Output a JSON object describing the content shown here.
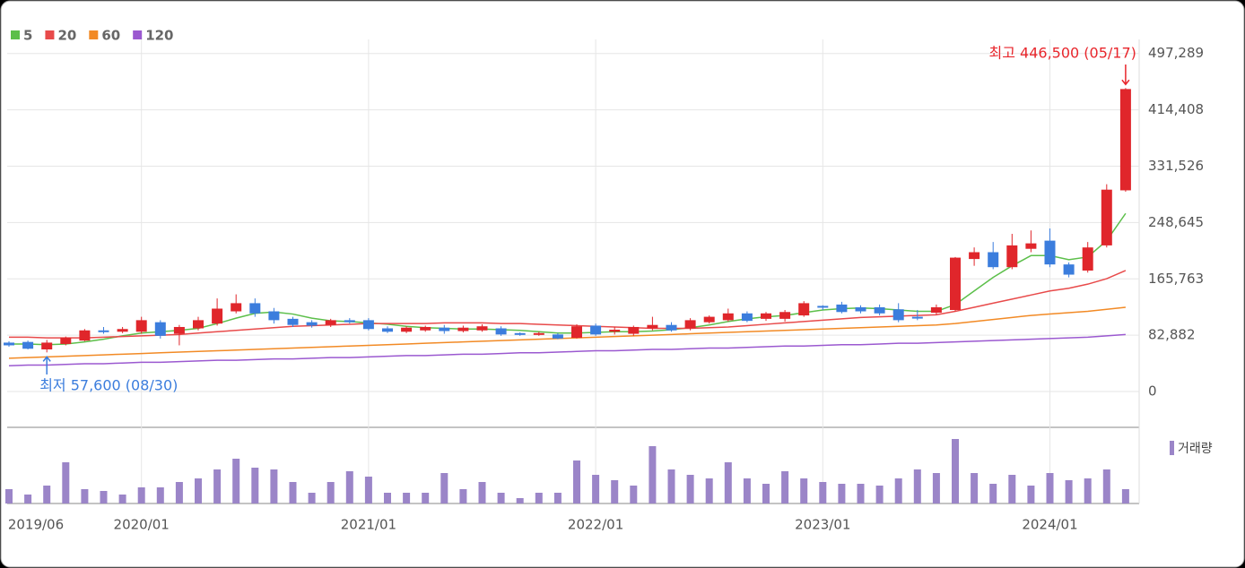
{
  "chart_data": {
    "type": "candlestick",
    "categories": [
      "2019/06",
      null,
      null,
      null,
      null,
      null,
      null,
      "2020/01",
      null,
      null,
      null,
      null,
      null,
      null,
      null,
      null,
      null,
      null,
      null,
      "2021/01",
      null,
      null,
      null,
      null,
      null,
      null,
      null,
      null,
      null,
      null,
      null,
      "2022/01",
      null,
      null,
      null,
      null,
      null,
      null,
      null,
      null,
      null,
      null,
      null,
      "2023/01",
      null,
      null,
      null,
      null,
      null,
      null,
      null,
      null,
      null,
      null,
      null,
      "2024/01",
      null,
      null,
      null,
      null
    ],
    "candles": {
      "up_color": "#e0262b",
      "down_color": "#3b7ddd",
      "open": [
        72000,
        73000,
        62000,
        70000,
        75000,
        90000,
        88000,
        88000,
        102000,
        85000,
        93000,
        100000,
        118000,
        130000,
        118000,
        107000,
        102000,
        98000,
        105000,
        105000,
        93000,
        88000,
        90000,
        94000,
        89000,
        90000,
        93000,
        86000,
        85000,
        84000,
        79000,
        97000,
        88000,
        85000,
        93000,
        98000,
        93000,
        102000,
        105000,
        115000,
        107000,
        107000,
        112000,
        126000,
        128000,
        124000,
        124000,
        121000,
        110000,
        116000,
        120000,
        195000,
        205000,
        183000,
        210000,
        222000,
        187000,
        178000,
        215000,
        296000
      ],
      "high": [
        74000,
        75000,
        76000,
        81000,
        92000,
        95000,
        95000,
        110000,
        105000,
        98000,
        110000,
        137000,
        143000,
        137000,
        123000,
        110000,
        105000,
        107000,
        108000,
        108000,
        96000,
        96000,
        97000,
        98000,
        97000,
        99000,
        96000,
        87000,
        88000,
        86000,
        99000,
        100000,
        95000,
        97000,
        110000,
        102000,
        108000,
        112000,
        122000,
        118000,
        117000,
        120000,
        133000,
        127000,
        132000,
        127000,
        128000,
        130000,
        120000,
        128000,
        198000,
        212000,
        220000,
        232000,
        237000,
        240000,
        190000,
        220000,
        305000,
        446500
      ],
      "low": [
        66000,
        62000,
        57600,
        68000,
        74000,
        85000,
        86000,
        85000,
        78000,
        68000,
        90000,
        97000,
        115000,
        110000,
        100000,
        95000,
        94000,
        95000,
        100000,
        90000,
        86000,
        86000,
        88000,
        85000,
        87000,
        88000,
        82000,
        82000,
        82000,
        77000,
        78000,
        82000,
        84000,
        82000,
        90000,
        88000,
        90000,
        100000,
        103000,
        102000,
        104000,
        103000,
        110000,
        120000,
        115000,
        115000,
        112000,
        102000,
        105000,
        113000,
        118000,
        185000,
        180000,
        180000,
        205000,
        183000,
        168000,
        175000,
        212000,
        294000
      ],
      "close": [
        68000,
        63000,
        72000,
        79000,
        90000,
        88000,
        92000,
        105000,
        82000,
        95000,
        105000,
        122000,
        130000,
        115000,
        105000,
        98000,
        97000,
        105000,
        102000,
        92000,
        88000,
        94000,
        95000,
        89000,
        94000,
        96000,
        84000,
        85000,
        86000,
        78000,
        96000,
        84000,
        91000,
        95000,
        98000,
        90000,
        105000,
        110000,
        115000,
        104000,
        115000,
        117000,
        130000,
        124000,
        117000,
        118000,
        115000,
        105000,
        108000,
        124000,
        197000,
        205000,
        183000,
        215000,
        218000,
        187000,
        172000,
        212000,
        297000,
        445000
      ]
    },
    "series": [
      {
        "name": "5",
        "color": "#5cbf4a",
        "values": [
          70000,
          70000,
          69000,
          70000,
          73000,
          77000,
          82000,
          86000,
          88000,
          90000,
          93000,
          100000,
          108000,
          115000,
          117000,
          114000,
          108000,
          104000,
          103000,
          101000,
          99000,
          96000,
          94000,
          93000,
          92000,
          92000,
          91000,
          90000,
          88000,
          86000,
          86000,
          87000,
          88000,
          88000,
          89000,
          91000,
          94000,
          98000,
          103000,
          107000,
          110000,
          112000,
          116000,
          120000,
          122000,
          123000,
          122000,
          120000,
          118000,
          118000,
          128000,
          148000,
          168000,
          185000,
          200000,
          200000,
          194000,
          198000,
          222000,
          262000
        ]
      },
      {
        "name": "20",
        "color": "#e84a4a",
        "values": [
          80000,
          80000,
          79000,
          79000,
          79000,
          80000,
          81000,
          82000,
          83000,
          84000,
          86000,
          88000,
          90000,
          92000,
          94000,
          96000,
          97000,
          98000,
          99000,
          100000,
          100000,
          100000,
          100000,
          101000,
          101000,
          101000,
          100000,
          100000,
          99000,
          98000,
          97000,
          96000,
          95000,
          94000,
          93000,
          93000,
          93000,
          94000,
          95000,
          97000,
          99000,
          101000,
          103000,
          105000,
          107000,
          109000,
          110000,
          111000,
          112000,
          113000,
          118000,
          124000,
          130000,
          136000,
          142000,
          148000,
          152000,
          158000,
          166000,
          178000
        ]
      },
      {
        "name": "60",
        "color": "#f28a25",
        "values": [
          49000,
          50000,
          51000,
          52000,
          53000,
          54000,
          55000,
          56000,
          57000,
          58000,
          59000,
          60000,
          61000,
          62000,
          63000,
          64000,
          65000,
          66000,
          67000,
          68000,
          69000,
          70000,
          71000,
          72000,
          73000,
          74000,
          75000,
          76000,
          77000,
          78000,
          79000,
          80000,
          81000,
          82000,
          83000,
          84000,
          85000,
          86000,
          87000,
          88000,
          89000,
          90000,
          91000,
          92000,
          93000,
          94000,
          95000,
          96000,
          97000,
          98000,
          100000,
          103000,
          106000,
          109000,
          112000,
          114000,
          116000,
          118000,
          121000,
          124000
        ]
      },
      {
        "name": "120",
        "color": "#9b59d0",
        "values": [
          38000,
          39000,
          39000,
          40000,
          41000,
          41000,
          42000,
          43000,
          43000,
          44000,
          45000,
          46000,
          46000,
          47000,
          48000,
          48000,
          49000,
          50000,
          50000,
          51000,
          52000,
          53000,
          53000,
          54000,
          55000,
          55000,
          56000,
          57000,
          57000,
          58000,
          59000,
          60000,
          60000,
          61000,
          62000,
          62000,
          63000,
          64000,
          64000,
          65000,
          66000,
          67000,
          67000,
          68000,
          69000,
          69000,
          70000,
          71000,
          71000,
          72000,
          73000,
          74000,
          75000,
          76000,
          77000,
          78000,
          79000,
          80000,
          82000,
          84000
        ]
      }
    ],
    "volume": {
      "name": "거래량",
      "color": "#9b85c8",
      "values": [
        16,
        10,
        20,
        46,
        16,
        14,
        10,
        18,
        18,
        24,
        28,
        38,
        50,
        40,
        38,
        24,
        12,
        24,
        36,
        30,
        12,
        12,
        12,
        34,
        16,
        24,
        12,
        6,
        12,
        12,
        48,
        32,
        26,
        20,
        64,
        38,
        32,
        28,
        46,
        28,
        22,
        36,
        28,
        24,
        22,
        22,
        20,
        28,
        38,
        34,
        72,
        34,
        22,
        32,
        20,
        34,
        26,
        28,
        38,
        16
      ]
    },
    "ylim": [
      -50000,
      518000
    ],
    "yticks": [
      0,
      {
        "value": 82882,
        "label": "82,882"
      },
      {
        "value": 165763,
        "label": "165,763"
      },
      {
        "value": 248645,
        "label": "248,645"
      },
      {
        "value": 331526,
        "label": "331,526"
      },
      {
        "value": 414408,
        "label": "414,408"
      },
      {
        "value": 497289,
        "label": "497,289"
      }
    ],
    "grid": true,
    "legend": "top-left",
    "high_label": "최고 446,500 (05/17)",
    "low_label": "최저 57,600 (08/30)"
  }
}
